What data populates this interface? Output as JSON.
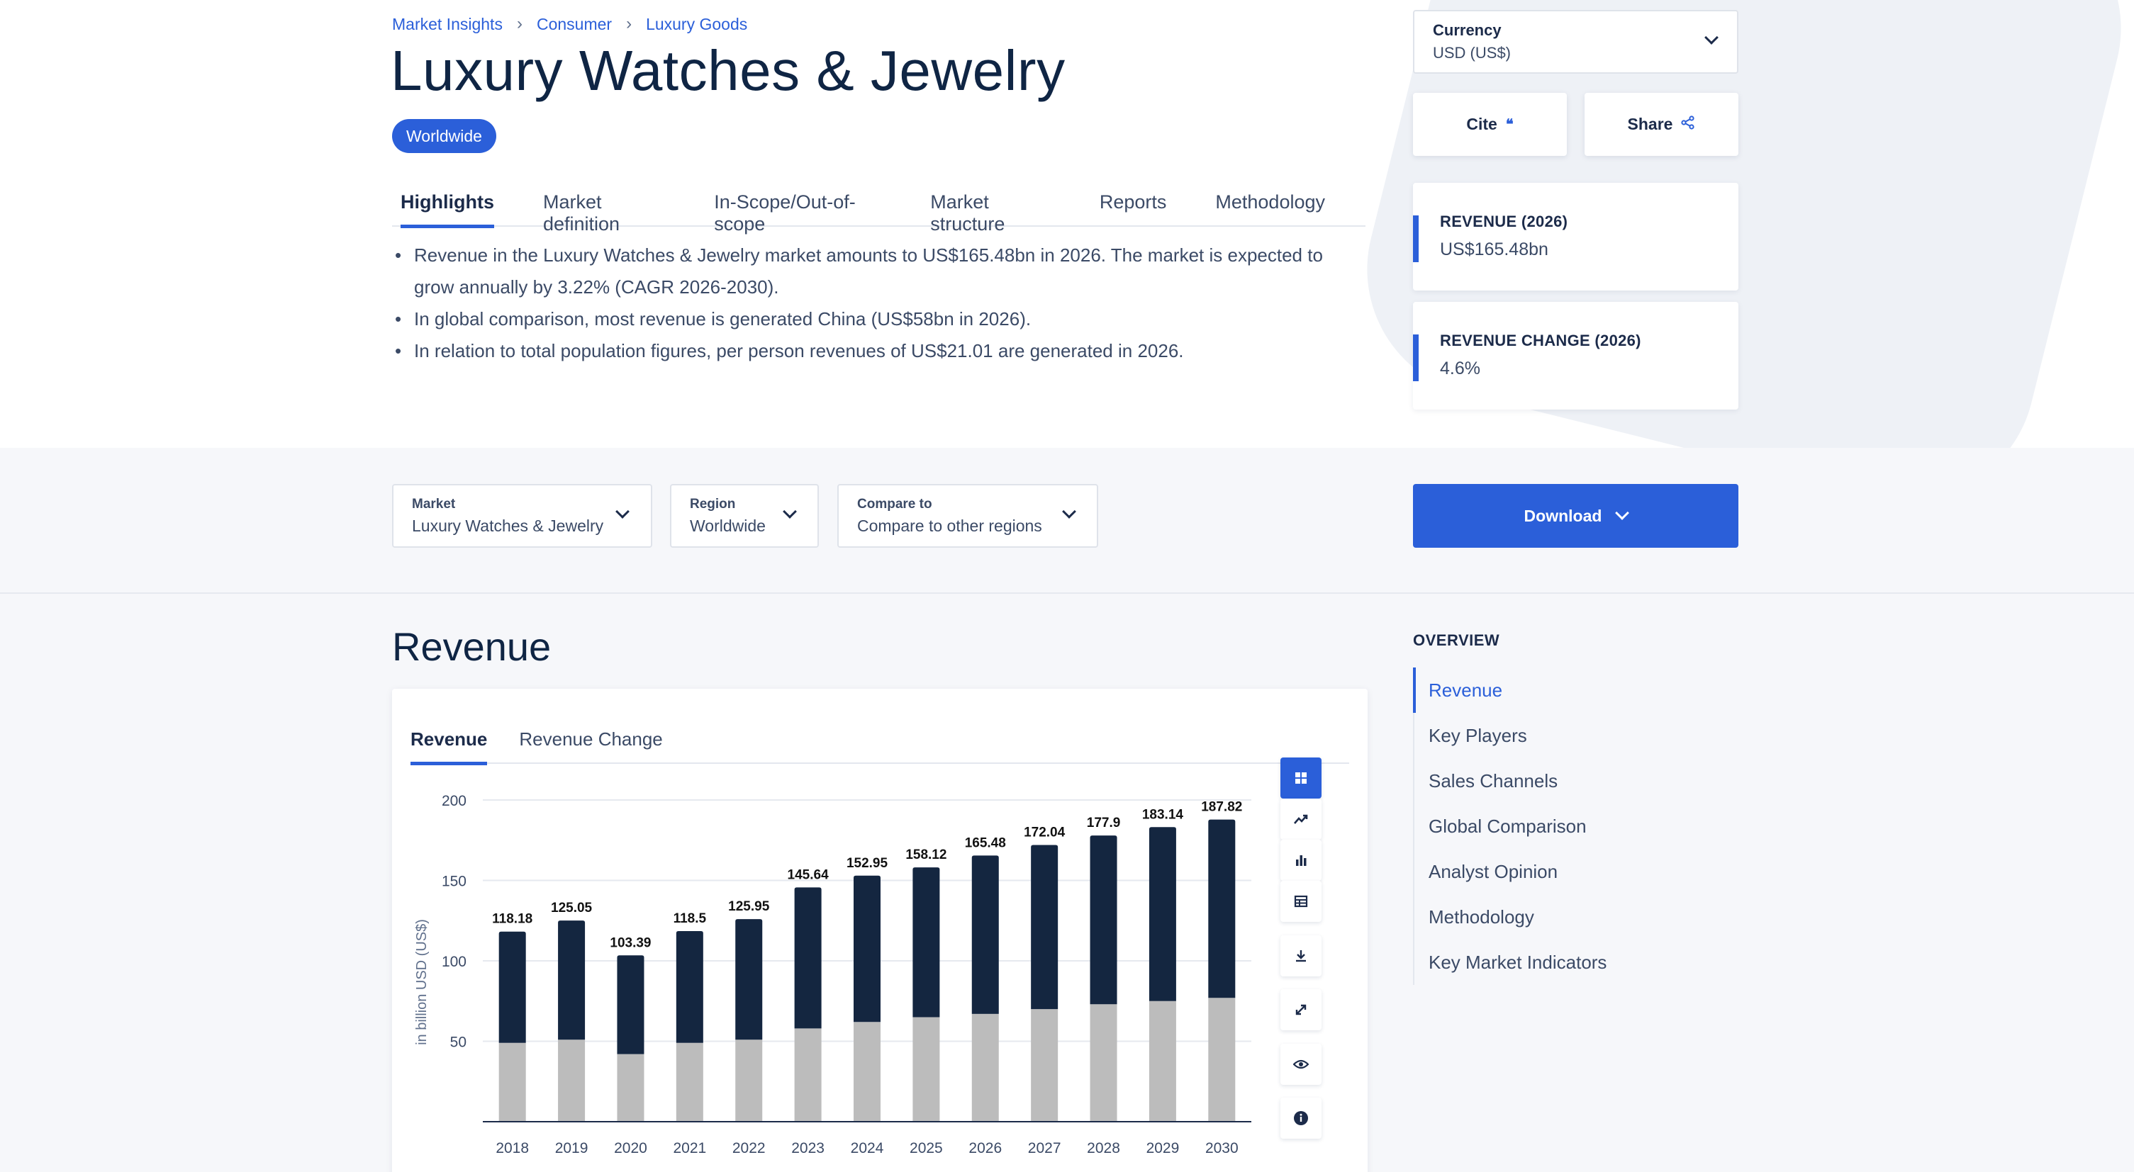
{
  "breadcrumb": [
    "Market Insights",
    "Consumer",
    "Luxury Goods"
  ],
  "title": "Luxury Watches & Jewelry",
  "region_badge": "Worldwide",
  "tabs": [
    "Highlights",
    "Market definition",
    "In-Scope/Out-of-scope",
    "Market structure",
    "Reports",
    "Methodology"
  ],
  "highlights": [
    "Revenue in the Luxury Watches & Jewelry market amounts to US$165.48bn in 2026. The market is expected to",
    "grow annually by 3.22% (CAGR 2026-2030).",
    "In global comparison, most revenue is generated China (US$58bn in 2026).",
    "In relation to total population figures, per person revenues of US$21.01 are generated in 2026."
  ],
  "currency": {
    "label": "Currency",
    "value": "USD (US$)"
  },
  "cite_label": "Cite",
  "share_label": "Share",
  "kpis": [
    {
      "label": "REVENUE (2026)",
      "value": "US$165.48bn"
    },
    {
      "label": "REVENUE CHANGE (2026)",
      "value": "4.6%"
    }
  ],
  "filters": [
    {
      "label": "Market",
      "value": "Luxury Watches & Jewelry"
    },
    {
      "label": "Region",
      "value": "Worldwide"
    },
    {
      "label": "Compare to",
      "value": "Compare to other regions"
    }
  ],
  "download_label": "Download",
  "section_title": "Revenue",
  "chart_tabs": [
    "Revenue",
    "Revenue Change"
  ],
  "overview": {
    "title": "OVERVIEW",
    "items": [
      "Revenue",
      "Key Players",
      "Sales Channels",
      "Global Comparison",
      "Analyst Opinion",
      "Methodology",
      "Key Market Indicators"
    ]
  },
  "colors": {
    "accent": "#2b5fd9",
    "dark_bar": "#142640",
    "light_bar": "#bcbcbc"
  },
  "chart_data": {
    "type": "bar",
    "stacked": true,
    "categories": [
      "2018",
      "2019",
      "2020",
      "2021",
      "2022",
      "2023",
      "2024",
      "2025",
      "2026",
      "2027",
      "2028",
      "2029",
      "2030"
    ],
    "totals": [
      118.18,
      125.05,
      103.39,
      118.5,
      125.95,
      145.64,
      152.95,
      158.12,
      165.48,
      172.04,
      177.9,
      183.14,
      187.82
    ],
    "series": [
      {
        "values": [
          49,
          51,
          42,
          49,
          51,
          58,
          62,
          65,
          67,
          70,
          73,
          75,
          77
        ]
      },
      {
        "values": [
          69.18,
          74.05,
          61.39,
          69.5,
          74.95,
          87.64,
          90.95,
          93.12,
          98.48,
          102.04,
          104.9,
          108.14,
          110.82
        ]
      }
    ],
    "ylabel": "in billion USD (US$)",
    "yticks": [
      50,
      100,
      150,
      200
    ],
    "ylim": [
      0,
      200
    ],
    "grid": true
  }
}
